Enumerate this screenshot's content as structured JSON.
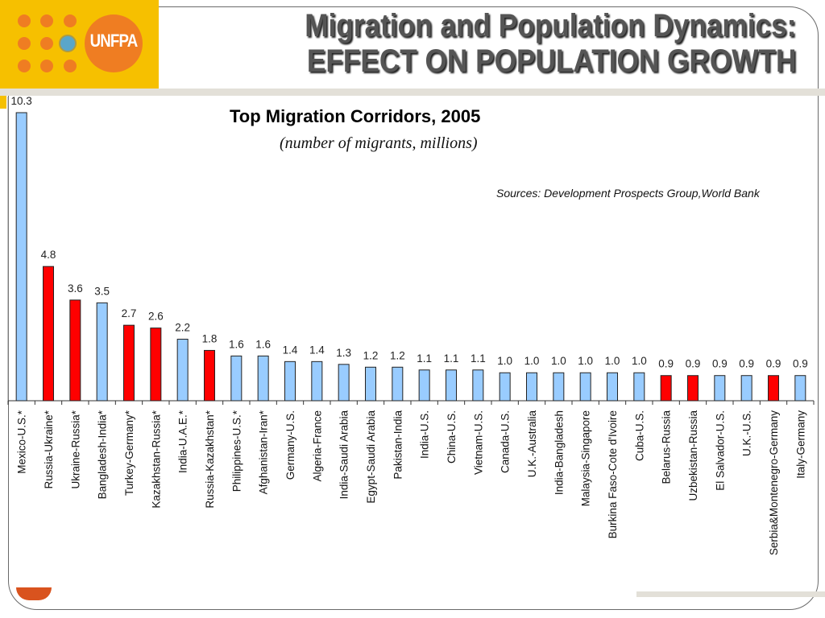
{
  "slide": {
    "title_line1": "Migration and Population Dynamics:",
    "title_line2": "EFFECT ON POPULATION GROWTH",
    "logo_text": "UNFPA"
  },
  "chart_data": {
    "type": "bar",
    "title": "Top Migration Corridors, 2005",
    "subtitle": "(number of migrants, millions)",
    "source": "Sources: Development Prospects Group,World Bank",
    "xlabel": "",
    "ylabel": "",
    "ylim": [
      0,
      10.3
    ],
    "grid": false,
    "legend": "none",
    "colors": {
      "default": "#99ccff",
      "highlight": "#ff0000"
    },
    "categories": [
      "Mexico-U.S.*",
      "Russia-Ukraine*",
      "Ukraine-Russia*",
      "Bangladesh-India*",
      "Turkey-Germany*",
      "Kazakhstan-Russia*",
      "India-U.A.E.*",
      "Russia-Kazakhstan*",
      "Philippines-U.S.*",
      "Afghanistan-Iran*",
      "Germany-U.S.",
      "Algeria-France",
      "India-Saudi Arabia",
      "Egypt-Saudi Arabia",
      "Pakistan-India",
      "India-U.S.",
      "China-U.S.",
      "Vietnam-U.S.",
      "Canada-U.S.",
      "U.K.-Australia",
      "India-Bangladesh",
      "Malaysia-Singapore",
      "Burkina Faso-Cote d'Ivoire",
      "Cuba-U.S.",
      "Belarus-Russia",
      "Uzbekistan-Russia",
      "El Salvador-U.S.",
      "U.K.-U.S.",
      "Serbia&Montenegro-Germany",
      "Italy-Germany"
    ],
    "values": [
      10.3,
      4.8,
      3.6,
      3.5,
      2.7,
      2.6,
      2.2,
      1.8,
      1.6,
      1.6,
      1.4,
      1.4,
      1.3,
      1.2,
      1.2,
      1.1,
      1.1,
      1.1,
      1.0,
      1.0,
      1.0,
      1.0,
      1.0,
      1.0,
      0.9,
      0.9,
      0.9,
      0.9,
      0.9,
      0.9
    ],
    "value_labels": [
      "10.3",
      "4.8",
      "3.6",
      "3.5",
      "2.7",
      "2.6",
      "2.2",
      "1.8",
      "1.6",
      "1.6",
      "1.4",
      "1.4",
      "1.3",
      "1.2",
      "1.2",
      "1.1",
      "1.1",
      "1.1",
      "1.0",
      "1.0",
      "1.0",
      "1.0",
      "1.0",
      "1.0",
      "0.9",
      "0.9",
      "0.9",
      "0.9",
      "0.9",
      "0.9"
    ],
    "highlighted": [
      false,
      true,
      true,
      false,
      true,
      true,
      false,
      true,
      false,
      false,
      false,
      false,
      false,
      false,
      false,
      false,
      false,
      false,
      false,
      false,
      false,
      false,
      false,
      false,
      true,
      true,
      false,
      false,
      true,
      false
    ]
  }
}
